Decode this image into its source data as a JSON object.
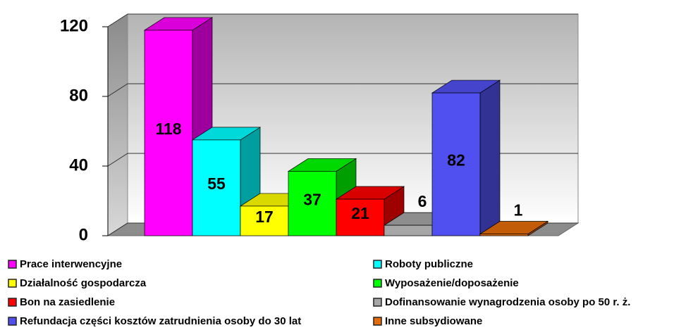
{
  "chart_data": {
    "type": "bar3d",
    "categories": [
      "Prace interwencyjne",
      "Roboty publiczne",
      "Działalność gospodarcza",
      "Wyposażenie/doposażenie",
      "Bon na zasiedlenie",
      "Dofinansowanie wynagrodzenia osoby po 50 r. ż.",
      "Refundacja części kosztów zatrudnienia osoby do 30 lat",
      "Inne subsydiowane"
    ],
    "values": [
      118,
      55,
      17,
      37,
      21,
      6,
      82,
      1
    ],
    "colors": [
      "#ff00ff",
      "#00ffff",
      "#ffff00",
      "#00ff00",
      "#ff0000",
      "#a6a6a6",
      "#5050f0",
      "#e46c0a"
    ],
    "ylim": [
      0,
      120
    ],
    "yticks": [
      0,
      40,
      80,
      120
    ],
    "grid": true
  }
}
